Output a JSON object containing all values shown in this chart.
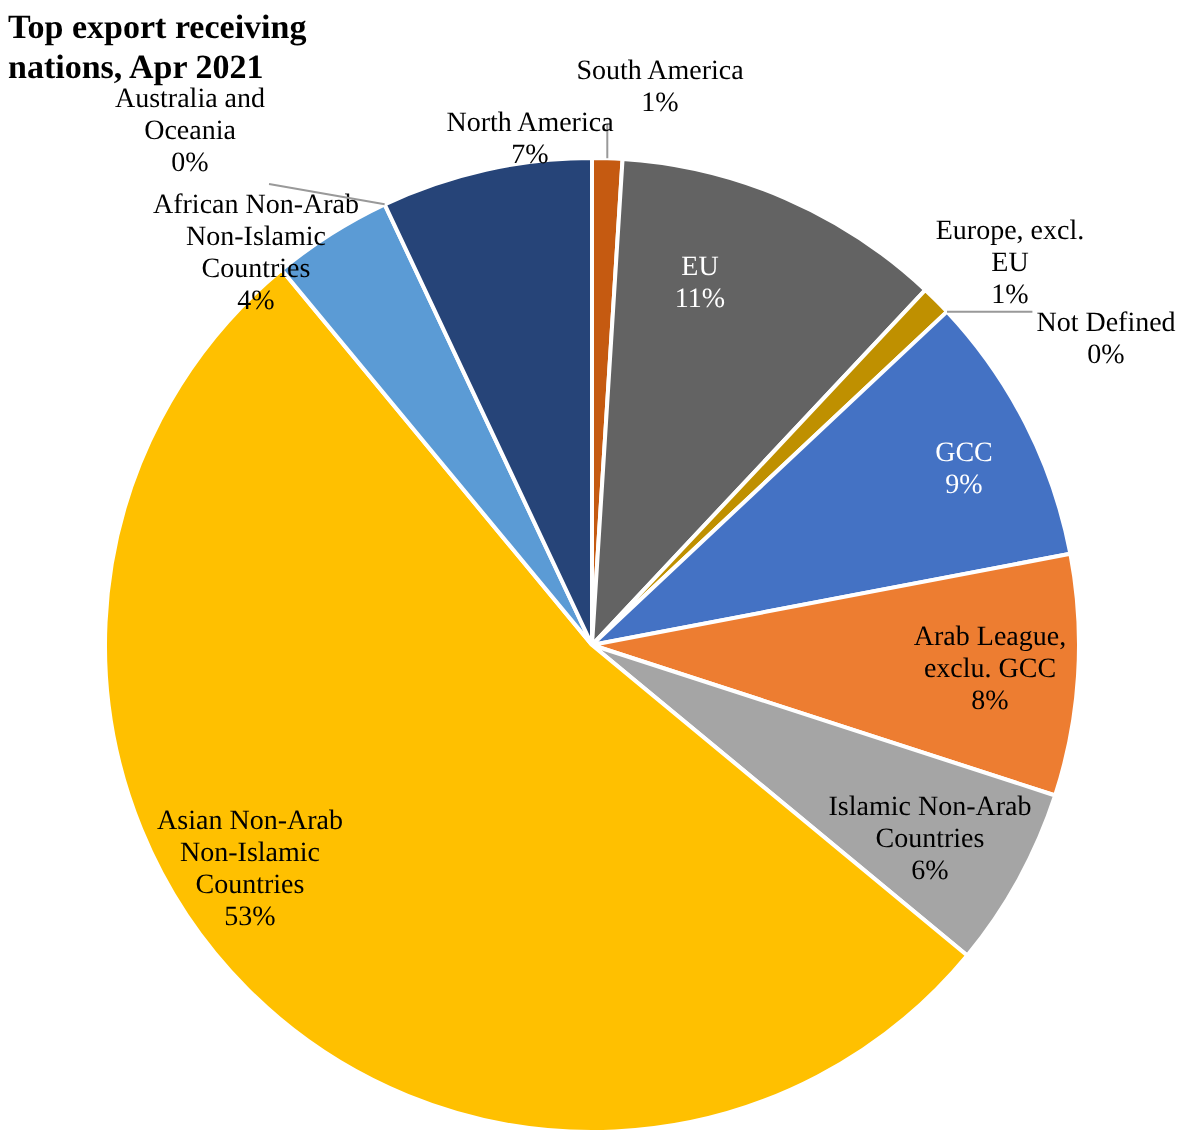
{
  "chart_data": {
    "type": "pie",
    "title": "Top export receiving nations, Apr 2021",
    "categories": [
      "South America",
      "EU",
      "Europe, excl. EU",
      "Not Defined",
      "GCC",
      "Arab League, exclu. GCC",
      "Islamic Non-Arab Countries",
      "Asian Non-Arab Non-Islamic Countries",
      "African Non-Arab Non-Islamic Countries",
      "Australia and Oceania",
      "North America"
    ],
    "values": [
      1,
      11,
      1,
      0,
      9,
      8,
      6,
      53,
      4,
      0,
      7
    ],
    "colors": [
      "#c55a11",
      "#636363",
      "#bf9000",
      "#203864",
      "#4472c4",
      "#ed7d31",
      "#a5a5a5",
      "#ffc000",
      "#5b9bd5",
      "#70ad47",
      "#264478"
    ],
    "value_labels": [
      "1%",
      "11%",
      "1%",
      "0%",
      "9%",
      "8%",
      "6%",
      "53%",
      "4%",
      "0%",
      "7%"
    ],
    "legend": false
  }
}
